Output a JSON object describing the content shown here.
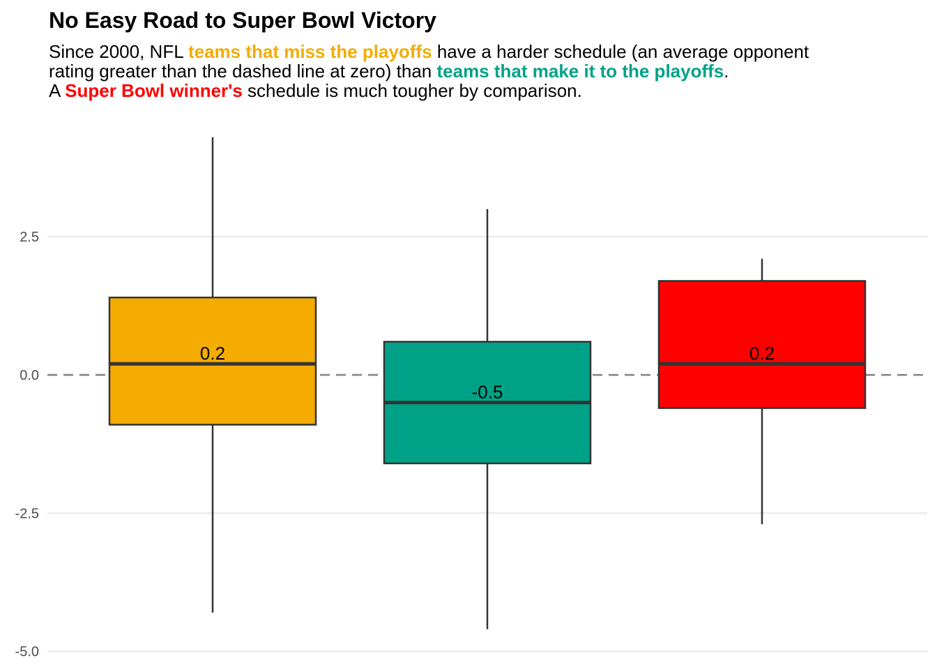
{
  "header": {
    "title": "No Easy Road to Super Bowl Victory",
    "subtitle": {
      "l1_a": "Since 2000, NFL ",
      "l1_hl": "teams that miss the playoffs",
      "l1_b": " have a harder schedule (an average opponent",
      "l2_a": "rating greater than the dashed line at zero) than ",
      "l2_hl": "teams that make it to the playoffs",
      "l2_b": ".",
      "l3_a": "A ",
      "l3_hl": "Super Bowl winner's",
      "l3_b": " schedule is much tougher by comparison."
    }
  },
  "colors": {
    "miss": "#F4AC00",
    "make": "#00A287",
    "winner": "#FF0000",
    "outline": "#333333",
    "grid": "#EBEBEB",
    "refline": "#808080"
  },
  "chart_data": {
    "type": "box",
    "ylim": [
      -5.0,
      5.0
    ],
    "y_ticks": [
      {
        "value": 2.5,
        "label": "2.5"
      },
      {
        "value": 0.0,
        "label": "0.0"
      },
      {
        "value": -2.5,
        "label": "-2.5"
      },
      {
        "value": -5.0,
        "label": "-5.0"
      }
    ],
    "reference_line": 0,
    "grid": true,
    "boxes": [
      {
        "min": -4.3,
        "q1": -0.9,
        "median": 0.2,
        "q3": 1.4,
        "max": 4.3,
        "label": "0.2",
        "color": "#F4AC00"
      },
      {
        "min": -4.6,
        "q1": -1.6,
        "median": -0.5,
        "q3": 0.6,
        "max": 3.0,
        "label": "-0.5",
        "color": "#00A287"
      },
      {
        "min": -2.7,
        "q1": -0.6,
        "median": 0.2,
        "q3": 1.7,
        "max": 2.1,
        "label": "0.2",
        "color": "#FF0000"
      }
    ]
  }
}
